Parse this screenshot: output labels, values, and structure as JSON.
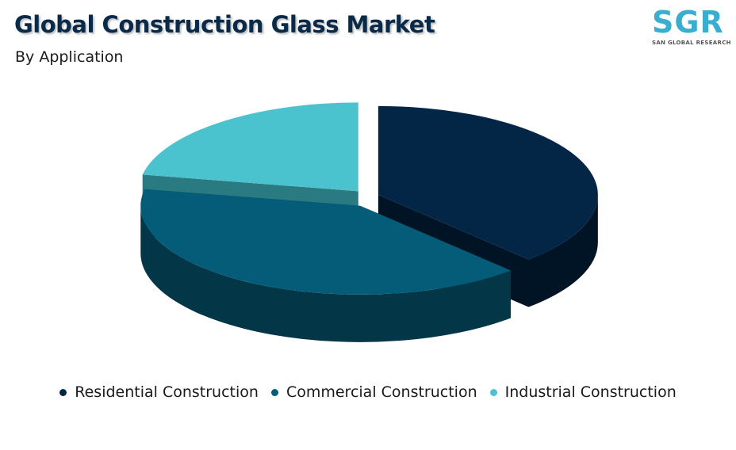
{
  "header": {
    "title": "Global Construction Glass Market",
    "subtitle": "By Application"
  },
  "logo": {
    "mark": "SGR",
    "tagline": "SAN GLOBAL RESEARCH"
  },
  "chart_data": {
    "type": "pie",
    "title": "Global Construction Glass Market",
    "subtitle": "By Application",
    "three_d": true,
    "exploded": true,
    "legend_position": "bottom",
    "categories": [
      "Residential Construction",
      "Commercial Construction",
      "Industrial Construction"
    ],
    "values": [
      38,
      40,
      22
    ],
    "colors": [
      "#032647",
      "#055c78",
      "#4bc3cf"
    ],
    "side_colors": [
      "#011426",
      "#033647",
      "#2a7a82"
    ]
  }
}
